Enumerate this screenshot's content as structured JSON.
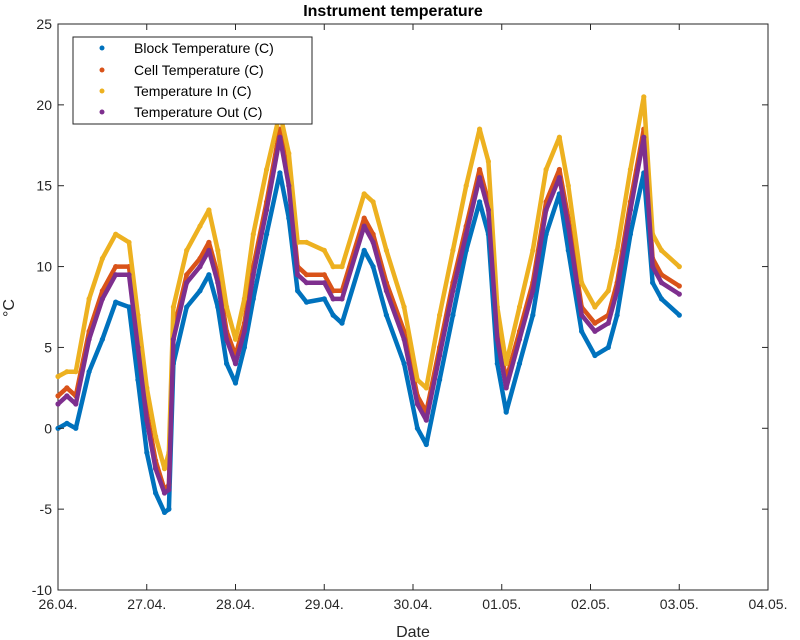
{
  "chart_data": {
    "type": "scatter",
    "title": "Instrument temperature",
    "xlabel": "Date",
    "ylabel": "°C",
    "ylim": [
      -10,
      25
    ],
    "yticks": [
      -10,
      -5,
      0,
      5,
      10,
      15,
      20,
      25
    ],
    "y_tick_labels": [
      "-10",
      "-5",
      "0",
      "5",
      "10",
      "15",
      "20",
      "25"
    ],
    "xlim": [
      0,
      8
    ],
    "xticks": [
      0,
      1,
      2,
      3,
      4,
      5,
      6,
      7,
      8
    ],
    "x_tick_labels": [
      "26.04.",
      "27.04.",
      "28.04.",
      "29.04.",
      "30.04.",
      "01.05.",
      "02.05.",
      "03.05.",
      "04.05."
    ],
    "legend_position": "top-left",
    "grid": false,
    "series": [
      {
        "name": "Block Temperature (C)",
        "color": "#0072BD",
        "x": [
          0.0,
          0.1,
          0.2,
          0.35,
          0.5,
          0.65,
          0.8,
          0.9,
          1.0,
          1.1,
          1.2,
          1.25,
          1.3,
          1.45,
          1.6,
          1.7,
          1.8,
          1.9,
          2.0,
          2.1,
          2.2,
          2.35,
          2.5,
          2.6,
          2.7,
          2.8,
          3.0,
          3.1,
          3.2,
          3.45,
          3.55,
          3.7,
          3.9,
          4.05,
          4.15,
          4.3,
          4.45,
          4.6,
          4.75,
          4.85,
          4.95,
          5.05,
          5.2,
          5.35,
          5.5,
          5.65,
          5.75,
          5.9,
          6.05,
          6.2,
          6.3,
          6.45,
          6.6,
          6.7,
          6.8,
          7.0
        ],
        "y": [
          0,
          0.3,
          0,
          3.5,
          5.5,
          7.8,
          7.5,
          3,
          -1.5,
          -4,
          -5.2,
          -5,
          4,
          7.5,
          8.5,
          9.5,
          7.5,
          4,
          2.8,
          5,
          8,
          12,
          15.8,
          13,
          8.5,
          7.8,
          8,
          7,
          6.5,
          11,
          10,
          7,
          4,
          0,
          -1,
          3,
          7,
          11,
          14,
          12,
          4,
          1,
          4,
          7,
          12,
          14.5,
          11,
          6,
          4.5,
          5,
          7,
          12,
          15.8,
          9,
          8,
          7
        ]
      },
      {
        "name": "Cell Temperature (C)",
        "color": "#D95319",
        "x": [
          0.0,
          0.1,
          0.2,
          0.35,
          0.5,
          0.65,
          0.8,
          0.9,
          1.0,
          1.1,
          1.2,
          1.25,
          1.3,
          1.45,
          1.6,
          1.7,
          1.8,
          1.9,
          2.0,
          2.1,
          2.2,
          2.35,
          2.5,
          2.6,
          2.7,
          2.8,
          3.0,
          3.1,
          3.2,
          3.45,
          3.55,
          3.7,
          3.9,
          4.05,
          4.15,
          4.3,
          4.45,
          4.6,
          4.75,
          4.85,
          4.95,
          5.05,
          5.2,
          5.35,
          5.5,
          5.65,
          5.75,
          5.9,
          6.05,
          6.2,
          6.3,
          6.45,
          6.6,
          6.7,
          6.8,
          7.0
        ],
        "y": [
          2,
          2.5,
          2,
          6,
          8.5,
          10,
          10,
          5.5,
          1,
          -2,
          -3.8,
          -3.5,
          6,
          9.5,
          10.5,
          11.5,
          9.5,
          6,
          4.5,
          6.5,
          10,
          14,
          18.5,
          15.5,
          10,
          9.5,
          9.5,
          8.5,
          8.5,
          13,
          12,
          9,
          6,
          2,
          1,
          5,
          9,
          12.5,
          16,
          14,
          6,
          3,
          6,
          9,
          14,
          16,
          13,
          7.5,
          6.5,
          7,
          9,
          14,
          18.5,
          10.5,
          9.5,
          8.8
        ]
      },
      {
        "name": "Temperature In (C)",
        "color": "#EDB120",
        "x": [
          0.0,
          0.1,
          0.2,
          0.35,
          0.5,
          0.65,
          0.8,
          0.9,
          1.0,
          1.1,
          1.2,
          1.25,
          1.3,
          1.45,
          1.6,
          1.7,
          1.8,
          1.9,
          2.0,
          2.1,
          2.2,
          2.35,
          2.5,
          2.6,
          2.7,
          2.8,
          3.0,
          3.1,
          3.2,
          3.45,
          3.55,
          3.7,
          3.9,
          4.05,
          4.15,
          4.3,
          4.45,
          4.6,
          4.75,
          4.85,
          4.95,
          5.05,
          5.2,
          5.35,
          5.5,
          5.65,
          5.75,
          5.9,
          6.05,
          6.2,
          6.3,
          6.45,
          6.6,
          6.7,
          6.8,
          7.0
        ],
        "y": [
          3.2,
          3.5,
          3.5,
          8,
          10.5,
          12,
          11.5,
          7,
          2.5,
          -0.5,
          -2.5,
          -1.5,
          7.5,
          11,
          12.5,
          13.5,
          11,
          7.5,
          5.5,
          8,
          12,
          16,
          19.5,
          17,
          11.5,
          11.5,
          11,
          10,
          10,
          14.5,
          14,
          11,
          7.5,
          3,
          2.5,
          7,
          11,
          15,
          18.5,
          16.5,
          7.5,
          4,
          7.5,
          11,
          16,
          18,
          15,
          9,
          7.5,
          8.5,
          11,
          16,
          20.5,
          12,
          11,
          10
        ]
      },
      {
        "name": "Temperature Out (C)",
        "color": "#7E2F8E",
        "x": [
          0.0,
          0.1,
          0.2,
          0.35,
          0.5,
          0.65,
          0.8,
          0.9,
          1.0,
          1.1,
          1.2,
          1.25,
          1.3,
          1.45,
          1.6,
          1.7,
          1.8,
          1.9,
          2.0,
          2.1,
          2.2,
          2.35,
          2.5,
          2.6,
          2.7,
          2.8,
          3.0,
          3.1,
          3.2,
          3.45,
          3.55,
          3.7,
          3.9,
          4.05,
          4.15,
          4.3,
          4.45,
          4.6,
          4.75,
          4.85,
          4.95,
          5.05,
          5.2,
          5.35,
          5.5,
          5.65,
          5.75,
          5.9,
          6.05,
          6.2,
          6.3,
          6.45,
          6.6,
          6.7,
          6.8,
          7.0
        ],
        "y": [
          1.5,
          2,
          1.5,
          5.5,
          8,
          9.5,
          9.5,
          5,
          0.5,
          -2.5,
          -4,
          -3.8,
          5.5,
          9,
          10,
          11,
          9,
          5.5,
          4,
          6,
          9.5,
          13.5,
          18,
          15,
          9.5,
          9,
          9,
          8,
          8,
          12.5,
          11.5,
          8.5,
          5.5,
          1.5,
          0.5,
          4.5,
          8.5,
          12,
          15.5,
          13.5,
          5.5,
          2.5,
          5.5,
          8.5,
          13.5,
          15.5,
          12.5,
          7,
          6,
          6.5,
          8.5,
          13.5,
          18,
          10,
          9,
          8.3
        ]
      }
    ]
  }
}
